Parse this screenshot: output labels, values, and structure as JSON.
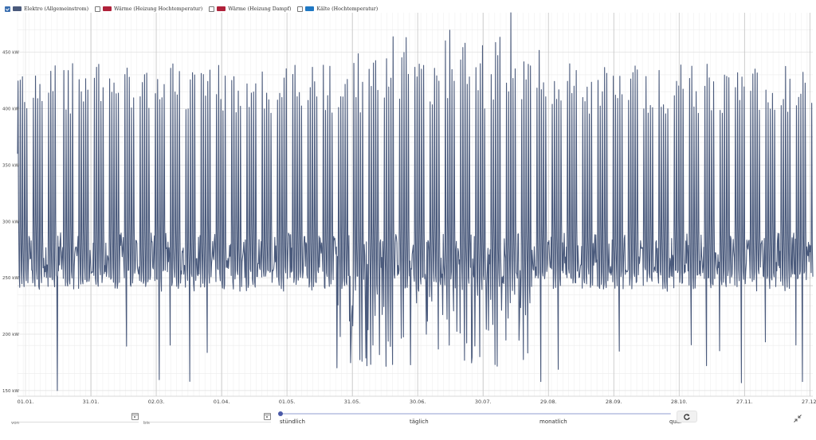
{
  "legend": [
    {
      "label": "Elektro (Allgemeinstrom)",
      "color": "#4a5a7c",
      "checked": true
    },
    {
      "label": "Wärme (Heizung Hochtemperatur)",
      "color": "#b0213a",
      "checked": false
    },
    {
      "label": "Wärme (Heizung Dampf)",
      "color": "#b0213a",
      "checked": false
    },
    {
      "label": "Kälte (Hochtemperatur)",
      "color": "#1f78c4",
      "checked": false
    }
  ],
  "controls": {
    "from_placeholder": "von",
    "to_placeholder": "bis",
    "granularity_options": [
      "stündlich",
      "täglich",
      "monatlich",
      "quar"
    ],
    "granularity_selected": "stündlich"
  },
  "chart_data": {
    "type": "line",
    "series": [
      {
        "name": "Elektro (Allgemeinstrom)",
        "color": "#4a5a7c"
      }
    ],
    "x_start": "01.01.",
    "x_end": "31.12.",
    "x_tick_labels": [
      "01.01.",
      "31.01.",
      "02.03.",
      "01.04.",
      "01.05.",
      "31.05.",
      "30.06.",
      "30.07.",
      "29.08.",
      "28.09.",
      "28.10.",
      "27.11.",
      "27.12."
    ],
    "y_tick_labels": [
      "150 kW",
      "200 kW",
      "250 kW",
      "300 kW",
      "350 kW",
      "400 kW",
      "450 kW"
    ],
    "ylim": [
      145,
      485
    ],
    "y_ticks": [
      150,
      200,
      250,
      300,
      350,
      400,
      450
    ],
    "weekly_pattern": {
      "weekday_peak_kW": [
        395,
        440
      ],
      "weekday_base_kW": [
        238,
        300
      ],
      "weekend_kW": [
        250,
        290
      ]
    },
    "min_kW": 150,
    "max_kW": 485,
    "grid": true
  }
}
